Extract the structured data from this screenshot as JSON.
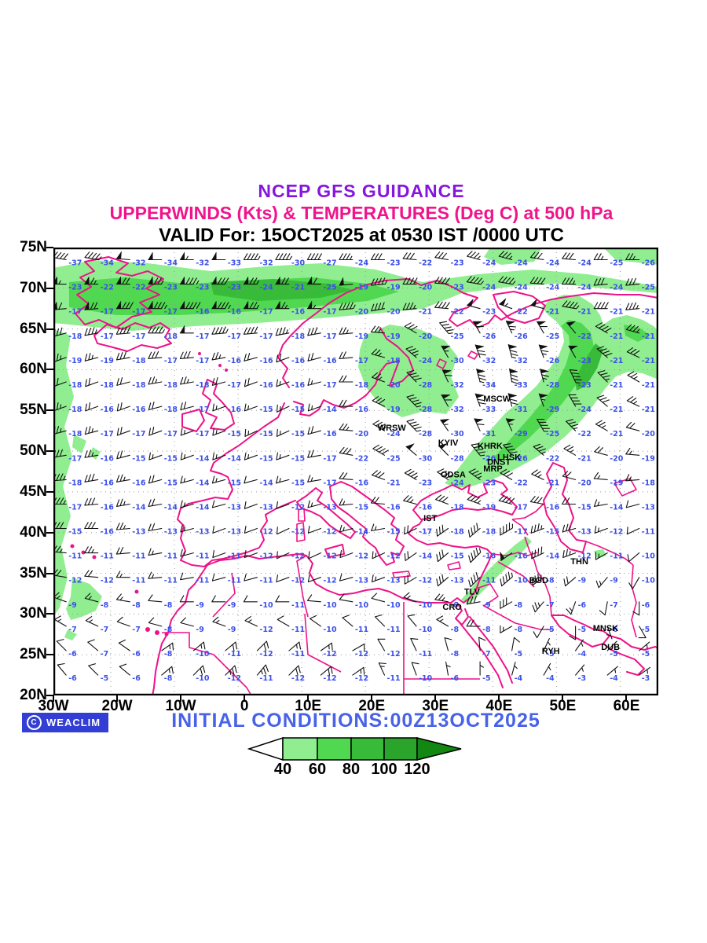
{
  "header": {
    "line1": "NCEP GFS GUIDANCE",
    "line2": "UPPERWINDS (Kts) & TEMPERATURES (Deg C) at 500 hPa",
    "line3": "VALID For: 15OCT2025 at 0530 IST /0000 UTC"
  },
  "footer": {
    "credit_symbol": "C",
    "credit": "WEACLIM",
    "initial_conditions": "INITIAL CONDITIONS:00Z13OCT2025"
  },
  "colors": {
    "title_purple": "#8616dd",
    "title_magenta": "#f0148c",
    "coast_pink": "#ee1289",
    "temp_blue": "#3c50e8",
    "initial_blue": "#4862e8",
    "weaclim_badge": "#333fd4",
    "wind_40_60": "#90ee90",
    "wind_60_80": "#50d850",
    "wind_80_100": "#38bb38",
    "wind_100_120": "#2aa42a",
    "wind_over_120": "#128812"
  },
  "legend": {
    "labels": [
      "40",
      "60",
      "80",
      "100",
      "120"
    ],
    "segment_colors": [
      "#90ee90",
      "#50d850",
      "#38bb38",
      "#2aa42a"
    ],
    "arrow_color": "#128812",
    "left_cap_color": "#ffffff"
  },
  "map": {
    "lon_min": -30,
    "lon_max": 65,
    "lat_min": 20,
    "lat_max": 75,
    "lat_ticks": [
      "75N",
      "70N",
      "65N",
      "60N",
      "55N",
      "50N",
      "45N",
      "40N",
      "35N",
      "30N",
      "25N",
      "20N"
    ],
    "lat_tick_values": [
      75,
      70,
      65,
      60,
      55,
      50,
      45,
      40,
      35,
      30,
      25,
      20
    ],
    "lon_ticks": [
      "30W",
      "20W",
      "10W",
      "0",
      "10E",
      "20E",
      "30E",
      "40E",
      "50E",
      "60E"
    ],
    "lon_tick_values": [
      -30,
      -20,
      -10,
      0,
      10,
      20,
      30,
      40,
      50,
      60
    ],
    "grid_lons": [
      -21,
      -11,
      -1,
      9,
      19,
      29,
      39,
      49,
      59
    ],
    "grid_lats": [
      70,
      65,
      60,
      55,
      50,
      45,
      40,
      35,
      30,
      25
    ],
    "cities": [
      {
        "label": "MSCW",
        "lon": 39.0,
        "lat": 56.1
      },
      {
        "label": "WRSW",
        "lon": 22.4,
        "lat": 52.5
      },
      {
        "label": "KYIV",
        "lon": 31.9,
        "lat": 50.7
      },
      {
        "label": "KHRK",
        "lon": 38.1,
        "lat": 50.3
      },
      {
        "label": "LHSK",
        "lon": 41.2,
        "lat": 48.9
      },
      {
        "label": "DNST",
        "lon": 39.6,
        "lat": 48.3
      },
      {
        "label": "MRP",
        "lon": 39.0,
        "lat": 47.5
      },
      {
        "label": "ODSA",
        "lon": 32.3,
        "lat": 46.8
      },
      {
        "label": "IST",
        "lon": 29.6,
        "lat": 41.4
      },
      {
        "label": "TLV",
        "lon": 36.0,
        "lat": 32.4
      },
      {
        "label": "CRO",
        "lon": 32.6,
        "lat": 30.5
      },
      {
        "label": "BGD",
        "lon": 46.2,
        "lat": 33.8
      },
      {
        "label": "THN",
        "lon": 52.7,
        "lat": 36.1
      },
      {
        "label": "MNSK",
        "lon": 56.2,
        "lat": 27.9
      },
      {
        "label": "DUB",
        "lon": 57.5,
        "lat": 25.6
      },
      {
        "label": "RYH",
        "lon": 48.2,
        "lat": 25.1
      }
    ]
  },
  "stations": {
    "lats": [
      73.5,
      70.5,
      67.5,
      64.5,
      61.5,
      58.5,
      55.5,
      52.5,
      49.5,
      46.5,
      43.5,
      40.5,
      37.5,
      34.5,
      31.5,
      28.5,
      25.5,
      22.5
    ],
    "lons": [
      -28,
      -23,
      -18,
      -13,
      -8,
      -3,
      2,
      7,
      12,
      17,
      22,
      27,
      32,
      37,
      42,
      47,
      52,
      57,
      62
    ],
    "temps_c": [
      [
        -37,
        -34,
        -32,
        -34,
        -32,
        -33,
        -32,
        -30,
        -27,
        -24,
        -23,
        -22,
        -23,
        -24,
        -24,
        -24,
        -24,
        -25,
        -26
      ],
      [
        -23,
        -22,
        -22,
        -23,
        -23,
        -23,
        -24,
        -21,
        -25,
        -19,
        -19,
        -20,
        -23,
        -24,
        -24,
        -24,
        -24,
        -24,
        -25
      ],
      [
        -17,
        -17,
        -17,
        -17,
        -16,
        -16,
        -17,
        -16,
        -17,
        -20,
        -20,
        -21,
        -22,
        -23,
        -22,
        -21,
        -21,
        -21,
        -21
      ],
      [
        -18,
        -17,
        -17,
        -18,
        -17,
        -17,
        -17,
        -18,
        -17,
        -19,
        -19,
        -20,
        -25,
        -26,
        -26,
        -25,
        -22,
        -21,
        -21
      ],
      [
        -19,
        -19,
        -18,
        -17,
        -17,
        -16,
        -16,
        -16,
        -16,
        -17,
        -18,
        -24,
        -30,
        -32,
        -32,
        -26,
        -23,
        -21,
        -21
      ],
      [
        -18,
        -18,
        -18,
        -18,
        -18,
        -17,
        -16,
        -16,
        -17,
        -18,
        -20,
        -28,
        -32,
        -34,
        -33,
        -28,
        -23,
        -21,
        -21
      ],
      [
        -18,
        -16,
        -16,
        -18,
        -17,
        -16,
        -15,
        -15,
        -14,
        -16,
        -19,
        -28,
        -32,
        -33,
        -31,
        -29,
        -24,
        -21,
        -21
      ],
      [
        -18,
        -17,
        -17,
        -17,
        -17,
        -15,
        -15,
        -15,
        -16,
        -20,
        -24,
        -28,
        -30,
        -31,
        -29,
        -25,
        -22,
        -21,
        -20
      ],
      [
        -17,
        -16,
        -15,
        -15,
        -14,
        -14,
        -15,
        -15,
        -17,
        -22,
        -25,
        -30,
        -28,
        -26,
        -26,
        -22,
        -21,
        -20,
        -19
      ],
      [
        -18,
        -16,
        -16,
        -15,
        -14,
        -15,
        -14,
        -15,
        -17,
        -16,
        -21,
        -23,
        -24,
        -23,
        -22,
        -21,
        -20,
        -19,
        -18
      ],
      [
        -17,
        -16,
        -14,
        -14,
        -14,
        -13,
        -13,
        -12,
        -13,
        -15,
        -16,
        -16,
        -18,
        -19,
        -17,
        -16,
        -15,
        -14,
        -13
      ],
      [
        -15,
        -16,
        -13,
        -13,
        -13,
        -13,
        -12,
        -12,
        -12,
        -14,
        -15,
        -17,
        -18,
        -18,
        -17,
        -15,
        -13,
        -12,
        -11
      ],
      [
        -11,
        -11,
        -11,
        -11,
        -11,
        -11,
        -12,
        -12,
        -12,
        -12,
        -12,
        -14,
        -15,
        -16,
        -16,
        -14,
        -12,
        -11,
        -10
      ],
      [
        -12,
        -12,
        -11,
        -11,
        -11,
        -11,
        -11,
        -12,
        -12,
        -13,
        -13,
        -12,
        -13,
        -11,
        -10,
        -8,
        -9,
        -9,
        -10
      ],
      [
        -9,
        -8,
        -8,
        -8,
        -9,
        -9,
        -10,
        -11,
        -10,
        -10,
        -10,
        -10,
        -9,
        -9,
        -8,
        -7,
        -6,
        -7,
        -6
      ],
      [
        -7,
        -7,
        -7,
        -8,
        -9,
        -9,
        -12,
        -11,
        -10,
        -11,
        -11,
        -10,
        -8,
        -8,
        -8,
        -5,
        -5,
        -6,
        -5
      ],
      [
        -6,
        -7,
        -6,
        -8,
        -10,
        -11,
        -12,
        -11,
        -12,
        -12,
        -12,
        -11,
        -8,
        -7,
        -5,
        -5,
        -4,
        -5,
        -5
      ],
      [
        -6,
        -5,
        -6,
        -8,
        -10,
        -12,
        -11,
        -12,
        -12,
        -12,
        -11,
        -10,
        -6,
        -5,
        -4,
        -4,
        -3,
        -4,
        -3
      ]
    ],
    "wind_speed_kts": [
      [
        40,
        45,
        50,
        50,
        55,
        50,
        45,
        45,
        40,
        35,
        30,
        30,
        30,
        35,
        35,
        30,
        30,
        25,
        25
      ],
      [
        55,
        65,
        70,
        75,
        85,
        80,
        75,
        70,
        60,
        50,
        45,
        40,
        40,
        45,
        45,
        40,
        35,
        30,
        30
      ],
      [
        60,
        70,
        80,
        85,
        90,
        85,
        75,
        65,
        55,
        45,
        40,
        35,
        40,
        50,
        55,
        50,
        45,
        40,
        35
      ],
      [
        30,
        35,
        40,
        45,
        50,
        45,
        40,
        35,
        30,
        25,
        25,
        30,
        45,
        60,
        65,
        60,
        50,
        40,
        35
      ],
      [
        25,
        25,
        30,
        30,
        30,
        25,
        20,
        20,
        20,
        20,
        25,
        35,
        55,
        70,
        75,
        65,
        50,
        40,
        30
      ],
      [
        20,
        20,
        20,
        25,
        25,
        20,
        20,
        15,
        15,
        20,
        25,
        40,
        60,
        75,
        80,
        65,
        45,
        35,
        25
      ],
      [
        25,
        20,
        20,
        20,
        20,
        15,
        15,
        15,
        15,
        20,
        30,
        45,
        60,
        70,
        70,
        55,
        40,
        30,
        25
      ],
      [
        25,
        25,
        20,
        20,
        15,
        15,
        15,
        15,
        20,
        25,
        35,
        45,
        55,
        60,
        55,
        45,
        35,
        25,
        20
      ],
      [
        30,
        25,
        20,
        15,
        15,
        15,
        15,
        15,
        20,
        30,
        40,
        50,
        50,
        45,
        40,
        35,
        25,
        20,
        15
      ],
      [
        35,
        30,
        25,
        20,
        15,
        15,
        10,
        15,
        15,
        20,
        30,
        35,
        40,
        35,
        30,
        25,
        20,
        15,
        15
      ],
      [
        35,
        30,
        25,
        20,
        15,
        10,
        10,
        10,
        15,
        15,
        20,
        25,
        30,
        35,
        40,
        30,
        20,
        15,
        10
      ],
      [
        30,
        30,
        25,
        20,
        15,
        10,
        10,
        10,
        10,
        15,
        15,
        20,
        30,
        40,
        45,
        35,
        25,
        15,
        10
      ],
      [
        25,
        25,
        20,
        15,
        15,
        10,
        10,
        10,
        10,
        10,
        15,
        20,
        30,
        45,
        50,
        40,
        25,
        15,
        10
      ],
      [
        20,
        20,
        15,
        15,
        10,
        10,
        10,
        10,
        10,
        10,
        15,
        20,
        30,
        40,
        45,
        35,
        20,
        15,
        10
      ],
      [
        15,
        15,
        15,
        10,
        10,
        10,
        10,
        10,
        10,
        10,
        10,
        15,
        25,
        30,
        30,
        25,
        15,
        10,
        10
      ],
      [
        15,
        15,
        10,
        10,
        10,
        15,
        15,
        10,
        10,
        10,
        10,
        10,
        15,
        20,
        15,
        10,
        10,
        5,
        10
      ],
      [
        10,
        10,
        10,
        15,
        15,
        20,
        20,
        15,
        15,
        10,
        10,
        10,
        10,
        10,
        10,
        5,
        5,
        5,
        5
      ],
      [
        10,
        10,
        10,
        15,
        20,
        25,
        25,
        20,
        20,
        15,
        15,
        10,
        5,
        5,
        5,
        5,
        5,
        5,
        5
      ]
    ],
    "wind_dir_from_deg": [
      [
        280,
        280,
        275,
        270,
        270,
        270,
        270,
        270,
        270,
        270,
        270,
        275,
        280,
        285,
        285,
        280,
        275,
        270,
        270
      ],
      [
        270,
        270,
        270,
        270,
        270,
        270,
        270,
        270,
        270,
        265,
        265,
        270,
        275,
        280,
        280,
        275,
        270,
        265,
        265
      ],
      [
        265,
        265,
        270,
        270,
        270,
        270,
        270,
        270,
        270,
        265,
        260,
        265,
        275,
        285,
        290,
        285,
        280,
        270,
        265
      ],
      [
        255,
        260,
        265,
        270,
        270,
        265,
        265,
        260,
        260,
        265,
        275,
        300,
        320,
        330,
        335,
        330,
        320,
        300,
        285
      ],
      [
        250,
        255,
        260,
        265,
        265,
        260,
        255,
        250,
        255,
        265,
        285,
        310,
        330,
        340,
        345,
        340,
        330,
        310,
        295
      ],
      [
        250,
        250,
        255,
        260,
        260,
        255,
        250,
        250,
        255,
        270,
        290,
        315,
        335,
        345,
        350,
        345,
        335,
        315,
        300
      ],
      [
        250,
        250,
        250,
        255,
        255,
        250,
        250,
        245,
        250,
        270,
        295,
        315,
        330,
        340,
        345,
        340,
        330,
        310,
        295
      ],
      [
        255,
        255,
        250,
        250,
        250,
        250,
        245,
        245,
        255,
        275,
        300,
        315,
        325,
        335,
        335,
        330,
        315,
        300,
        285
      ],
      [
        260,
        260,
        255,
        250,
        250,
        250,
        250,
        250,
        260,
        280,
        300,
        310,
        315,
        320,
        320,
        310,
        300,
        285,
        275
      ],
      [
        265,
        260,
        260,
        255,
        255,
        255,
        255,
        255,
        260,
        275,
        290,
        300,
        305,
        305,
        300,
        295,
        285,
        275,
        265
      ],
      [
        270,
        265,
        260,
        260,
        255,
        255,
        250,
        250,
        255,
        265,
        275,
        285,
        290,
        290,
        285,
        280,
        270,
        260,
        255
      ],
      [
        270,
        270,
        265,
        260,
        255,
        250,
        250,
        245,
        250,
        255,
        260,
        245,
        235,
        230,
        240,
        250,
        255,
        250,
        245
      ],
      [
        275,
        270,
        265,
        260,
        255,
        250,
        250,
        245,
        245,
        250,
        245,
        235,
        230,
        225,
        235,
        245,
        250,
        240,
        230
      ],
      [
        280,
        275,
        270,
        265,
        260,
        255,
        255,
        250,
        250,
        255,
        250,
        240,
        230,
        225,
        230,
        235,
        230,
        220,
        210
      ],
      [
        290,
        285,
        280,
        275,
        270,
        270,
        270,
        270,
        275,
        280,
        285,
        290,
        280,
        260,
        240,
        220,
        200,
        190,
        180
      ],
      [
        300,
        295,
        290,
        285,
        285,
        290,
        295,
        300,
        305,
        310,
        315,
        320,
        300,
        270,
        240,
        210,
        180,
        160,
        150
      ],
      [
        315,
        310,
        305,
        55,
        50,
        50,
        45,
        50,
        55,
        60,
        330,
        335,
        345,
        355,
        10,
        25,
        35,
        45,
        50
      ],
      [
        320,
        315,
        310,
        50,
        45,
        45,
        40,
        45,
        50,
        55,
        335,
        340,
        350,
        0,
        15,
        30,
        40,
        50,
        55
      ]
    ]
  }
}
